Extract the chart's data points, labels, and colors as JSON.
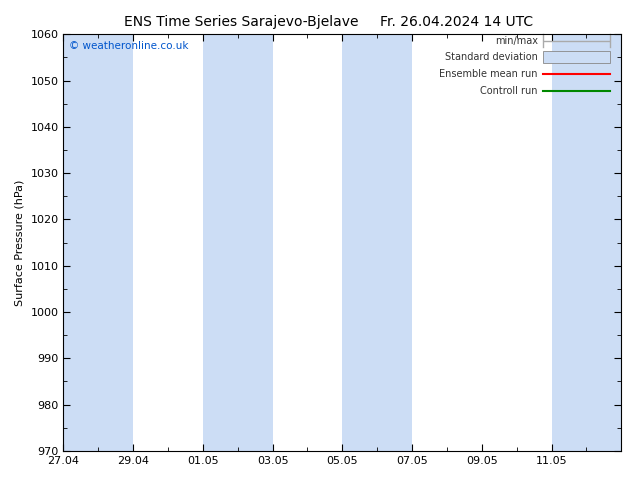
{
  "title": "ENS Time Series Sarajevo-Bjelave",
  "title2": "Fr. 26.04.2024 14 UTC",
  "ylabel": "Surface Pressure (hPa)",
  "ylim": [
    970,
    1060
  ],
  "yticks": [
    970,
    980,
    990,
    1000,
    1010,
    1020,
    1030,
    1040,
    1050,
    1060
  ],
  "copyright_text": "© weatheronline.co.uk",
  "copyright_color": "#0055cc",
  "background_color": "#ffffff",
  "plot_bg_color": "#ffffff",
  "shaded_band_color": "#ccddf5",
  "shaded_band_alpha": 1.0,
  "title_fontsize": 10,
  "axis_fontsize": 8,
  "tick_fontsize": 8,
  "num_days": 16,
  "shaded_intervals": [
    [
      0,
      2
    ],
    [
      4,
      6
    ],
    [
      8,
      10
    ],
    [
      14,
      16
    ]
  ],
  "x_tick_labels": [
    "27.04",
    "29.04",
    "01.05",
    "03.05",
    "05.05",
    "07.05",
    "09.05",
    "11.05"
  ],
  "x_tick_positions": [
    0,
    2,
    4,
    6,
    8,
    10,
    12,
    14
  ],
  "legend_minmax_color": "#aaaaaa",
  "legend_stddev_color": "#ccddf5",
  "legend_mean_color": "#ff0000",
  "legend_ctrl_color": "#008800"
}
